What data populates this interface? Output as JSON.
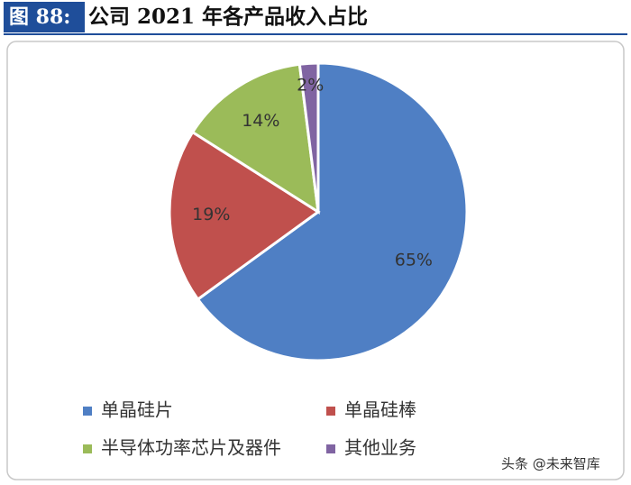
{
  "chart_data": {
    "type": "pie",
    "figure_label": "图 88:",
    "title": "公司 2021 年各产品收入占比",
    "categories": [
      "单晶硅片",
      "单晶硅棒",
      "半导体功率芯片及器件",
      "其他业务"
    ],
    "values": [
      65,
      19,
      14,
      2
    ],
    "value_labels": [
      "65%",
      "19%",
      "14%",
      "2%"
    ],
    "colors": [
      "#4f7fc4",
      "#c0504d",
      "#9bbb59",
      "#8064a2"
    ],
    "legend_position": "bottom",
    "watermark": "头条 @未来智库"
  }
}
